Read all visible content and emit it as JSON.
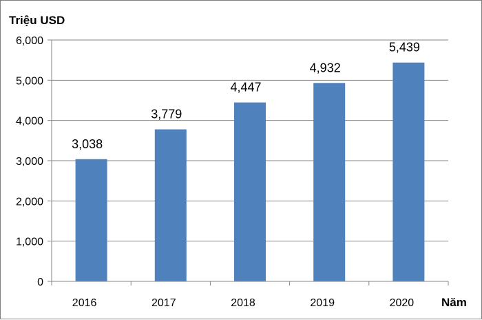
{
  "chart_data": {
    "type": "bar",
    "categories": [
      "2016",
      "2017",
      "2018",
      "2019",
      "2020"
    ],
    "values": [
      3038,
      3779,
      4447,
      4932,
      5439
    ],
    "value_labels": [
      "3,038",
      "3,779",
      "4,447",
      "4,932",
      "5,439"
    ],
    "ylabel": "Triệu USD",
    "xlabel": "Năm",
    "ylim": [
      0,
      6000
    ],
    "yticks": [
      0,
      1000,
      2000,
      3000,
      4000,
      5000,
      6000
    ],
    "ytick_labels": [
      "0",
      "1,000",
      "2,000",
      "3,000",
      "4,000",
      "5,000",
      "6,000"
    ],
    "grid": true,
    "legend": "none",
    "colors": {
      "bar": "#4f81bd",
      "grid": "#868686",
      "axis": "#868686"
    }
  }
}
